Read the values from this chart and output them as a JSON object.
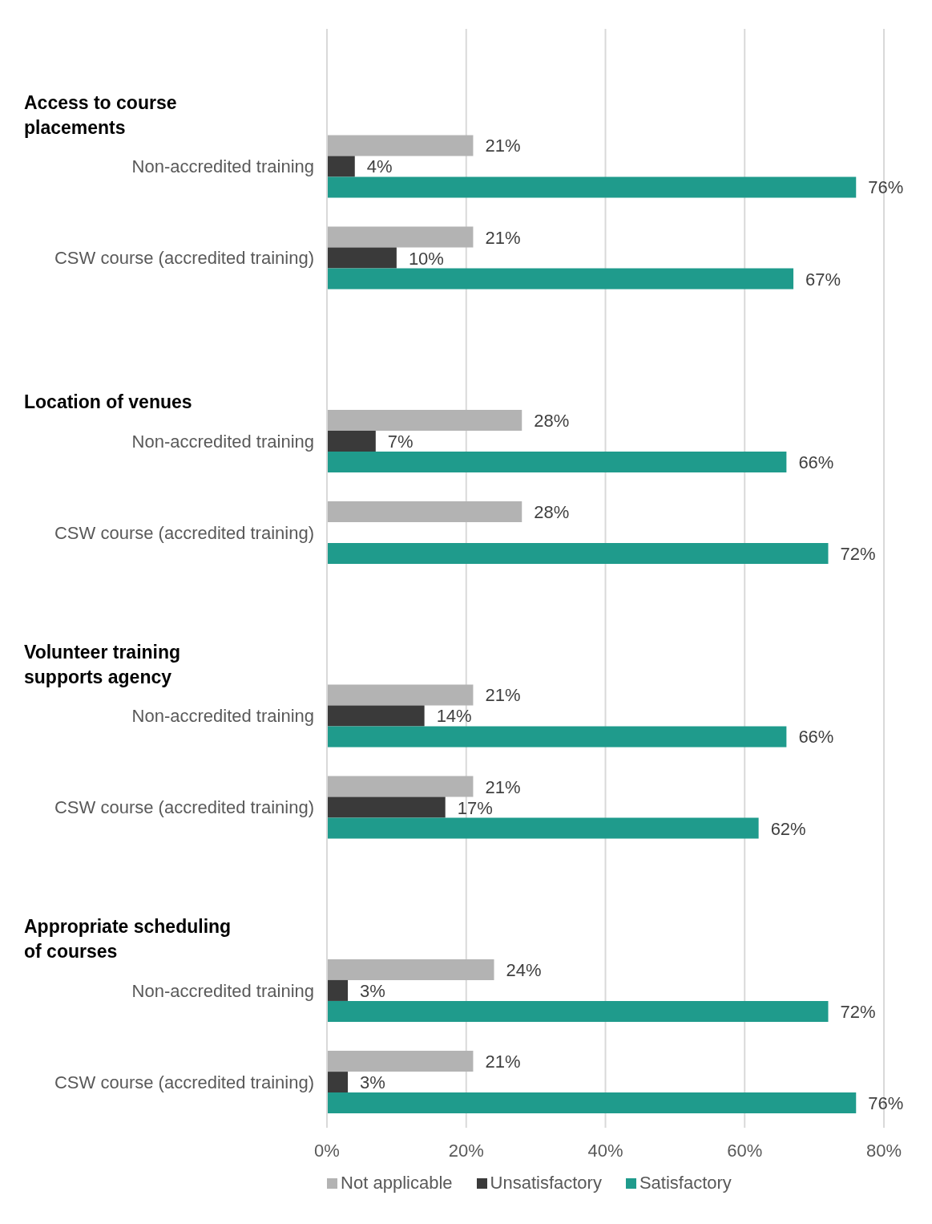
{
  "chart_data": {
    "type": "bar",
    "orientation": "horizontal",
    "categories": [
      null,
      "Non-accredited training",
      "CSW course (accredited training)",
      null,
      "Non-accredited training",
      "CSW course (accredited training)",
      null,
      "Non-accredited training",
      "CSW course (accredited training)",
      null,
      "Non-accredited training",
      "CSW course (accredited training)"
    ],
    "annotations": [
      "Access to course placements",
      "Location of venues",
      "Volunteer training supports agency",
      "Appropriate scheduling of courses"
    ],
    "series": [
      {
        "name": "Not applicable",
        "color": "#b3b3b3",
        "values": [
          null,
          21,
          21,
          null,
          28,
          28,
          null,
          21,
          21,
          null,
          24,
          21
        ],
        "value_labels": [
          null,
          "21%",
          "21%",
          null,
          "28%",
          "28%",
          null,
          "21%",
          "21%",
          null,
          "24%",
          "21%"
        ]
      },
      {
        "name": "Unsatisfactory",
        "color": "#3a3a3a",
        "values": [
          null,
          4,
          10,
          null,
          7,
          null,
          null,
          14,
          17,
          null,
          3,
          3
        ],
        "value_labels": [
          null,
          "4%",
          "10%",
          null,
          "7%",
          null,
          null,
          "14%",
          "17%",
          null,
          "3%",
          "3%"
        ]
      },
      {
        "name": "Satisfactory",
        "color": "#1f9b8c",
        "values": [
          null,
          76,
          67,
          null,
          66,
          72,
          null,
          66,
          62,
          null,
          72,
          76
        ],
        "value_labels": [
          null,
          "76%",
          "67%",
          null,
          "66%",
          "72%",
          null,
          "66%",
          "62%",
          null,
          "72%",
          "76%"
        ]
      }
    ],
    "xlim": [
      0,
      80
    ],
    "xticks": [
      {
        "value": 0,
        "label": "0%"
      },
      {
        "value": 20,
        "label": "20%"
      },
      {
        "value": 40,
        "label": "40%"
      },
      {
        "value": 60,
        "label": "60%"
      },
      {
        "value": 80,
        "label": "80%"
      }
    ],
    "grid": "x",
    "legend": "bottom"
  }
}
